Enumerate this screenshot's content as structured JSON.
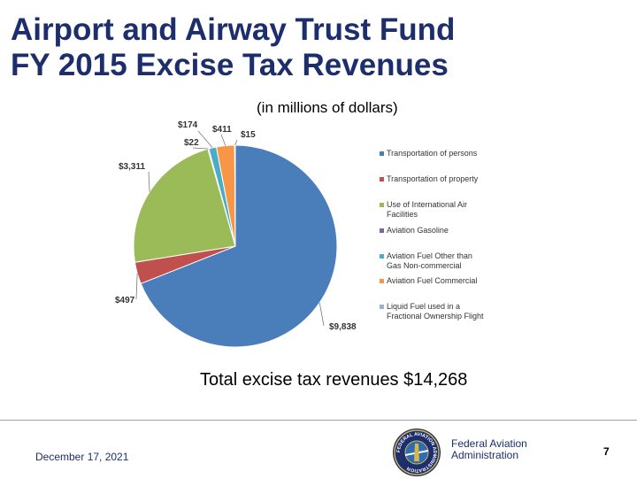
{
  "title": {
    "line1": "Airport and Airway Trust Fund",
    "line2": "FY 2015 Excise Tax Revenues"
  },
  "subtitle": "(in millions of dollars)",
  "chart_data": {
    "type": "pie",
    "subtitle": "(in millions of dollars)",
    "legend_position": "right",
    "slices": [
      {
        "label": "Transportation of persons",
        "value": 9838,
        "value_label": "$9,838",
        "color": "#4a7ebb"
      },
      {
        "label": "Transportation of property",
        "value": 497,
        "value_label": "$497",
        "color": "#c0504d"
      },
      {
        "label": "Use of International Air Facilities",
        "value": 3311,
        "value_label": "$3,311",
        "color": "#9bbb59"
      },
      {
        "label": "Aviation Gasoline",
        "value": 22,
        "value_label": "$22",
        "color": "#8064a2"
      },
      {
        "label": "Aviation Fuel Other than Gas Non-commercial",
        "value": 174,
        "value_label": "$174",
        "color": "#4bacc6"
      },
      {
        "label": "Aviation Fuel Commercial",
        "value": 411,
        "value_label": "$411",
        "color": "#f79646"
      },
      {
        "label": "Liquid Fuel used in a Fractional Ownership Flight",
        "value": 15,
        "value_label": "$15",
        "color": "#95b3d7"
      }
    ],
    "legend": [
      [
        "Transportation of persons"
      ],
      [
        "Transportation of property"
      ],
      [
        "Use of International Air",
        "Facilities"
      ],
      [
        "Aviation Gasoline"
      ],
      [
        "Aviation Fuel Other than",
        "Gas Non-commercial"
      ],
      [
        "Aviation Fuel Commercial"
      ],
      [
        "Liquid Fuel used in a",
        "Fractional Ownership Flight"
      ]
    ]
  },
  "total_text": "Total excise tax revenues $14,268",
  "footer": {
    "date": "December 17, 2021",
    "agency_line1": "Federal Aviation",
    "agency_line2": "Administration",
    "page_number": "7",
    "seal_text": "FEDERAL AVIATION ADMINISTRATION"
  }
}
